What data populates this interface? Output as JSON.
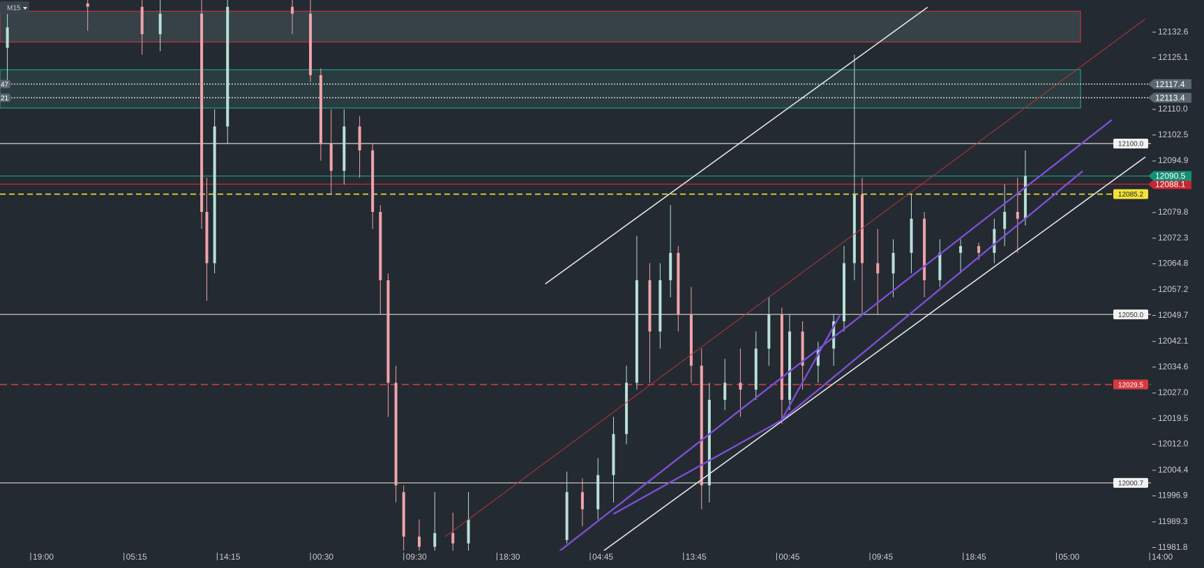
{
  "chart_data": {
    "type": "candlestick",
    "timeframe": "M15",
    "xlim": [
      -11.85,
      432.5
    ],
    "ylim": [
      11980.9,
      12142.0
    ],
    "xticks": [
      {
        "value": 0,
        "label": "19:00"
      },
      {
        "value": 36,
        "label": "05:15"
      },
      {
        "value": 72,
        "label": "14:15"
      },
      {
        "value": 108,
        "label": "00:30"
      },
      {
        "value": 144,
        "label": "09:30"
      },
      {
        "value": 180,
        "label": "18:30"
      },
      {
        "value": 216,
        "label": "04:45"
      },
      {
        "value": 252,
        "label": "13:45"
      },
      {
        "value": 288,
        "label": "00:45"
      },
      {
        "value": 324,
        "label": "09:45"
      },
      {
        "value": 360,
        "label": "18:45"
      },
      {
        "value": 396,
        "label": "05:00"
      },
      {
        "value": 432,
        "label": "14:00"
      }
    ],
    "yticks": [
      12132.6,
      12125.1,
      {
        "value": 12110,
        "label": "12110.0"
      },
      12102.5,
      12094.9,
      12079.8,
      12072.3,
      12064.8,
      12057.2,
      12049.7,
      12042.1,
      12034.6,
      {
        "value": 12027,
        "label": "12027.0"
      },
      12019.5,
      {
        "value": 12012,
        "label": "12012.0"
      },
      12004.4,
      11996.9,
      11989.3,
      11981.8
    ],
    "up_color": "#b7e0d6",
    "down_color": "#f0a3aa",
    "x": [
      -9,
      22,
      43,
      50,
      66,
      68,
      71,
      76,
      101,
      108,
      112,
      116,
      121,
      127,
      132,
      135,
      138,
      141,
      144,
      150,
      156,
      163,
      169,
      207,
      213,
      219,
      225,
      230,
      234,
      239,
      243,
      247,
      250,
      255,
      259,
      262,
      268,
      274,
      280,
      285,
      290,
      293,
      298,
      304,
      310,
      314,
      318,
      321,
      327,
      333,
      340,
      345,
      351,
      359,
      366,
      372,
      376,
      381,
      384
    ],
    "open": [
      12128,
      12141,
      12140,
      12132,
      12138,
      12080,
      12065,
      12105,
      12140,
      12138,
      12120,
      12100,
      12092,
      12105,
      12098,
      12080,
      12060,
      12030,
      11998,
      11985,
      11982,
      11986,
      11983,
      11984,
      11998,
      11993,
      12003,
      12015,
      12030,
      12060,
      12045,
      12060,
      12068,
      12050,
      12035,
      12000,
      12025,
      12030,
      12028,
      12040,
      12050,
      12025,
      12045,
      12035,
      12040,
      12048,
      12065,
      12085,
      12065,
      12062,
      12068,
      12078,
      12060,
      12068,
      12070,
      12068,
      12075,
      12080,
      12078
    ],
    "high": [
      12141,
      12145,
      12145,
      12142,
      12145,
      12090,
      12110,
      12145,
      12145,
      12142,
      12122,
      12110,
      12110,
      12108,
      12100,
      12082,
      12062,
      12035,
      12000,
      11990,
      11998,
      11992,
      11998,
      12004,
      12002,
      12008,
      12020,
      12035,
      12073,
      12065,
      12065,
      12082,
      12070,
      12058,
      12040,
      12030,
      12037,
      12040,
      12045,
      12055,
      12052,
      12050,
      12048,
      12042,
      12050,
      12070,
      12126,
      12090,
      12075,
      12072,
      12085,
      12080,
      12072,
      12072,
      12071,
      12078,
      12088,
      12090,
      12098
    ],
    "low": [
      12118,
      12133,
      12126,
      12127,
      12075,
      12054,
      12062,
      12100,
      12132,
      12118,
      12095,
      12085,
      12088,
      12090,
      12075,
      12050,
      12020,
      11995,
      11978,
      11978,
      11978,
      11978,
      11978,
      11983,
      11988,
      11990,
      11995,
      12012,
      12028,
      12030,
      12040,
      12055,
      12045,
      12030,
      11993,
      11995,
      12022,
      12020,
      12025,
      12035,
      12018,
      12022,
      12028,
      12030,
      12035,
      12045,
      12060,
      12050,
      12050,
      12055,
      12062,
      12055,
      12058,
      12062,
      12066,
      12065,
      12070,
      12068,
      12076
    ],
    "close": [
      12134,
      12140,
      12132,
      12138,
      12080,
      12065,
      12105,
      12140,
      12138,
      12120,
      12100,
      12092,
      12105,
      12098,
      12080,
      12060,
      12030,
      12000,
      11985,
      11982,
      11986,
      11983,
      11990,
      11998,
      11993,
      12003,
      12015,
      12030,
      12060,
      12045,
      12060,
      12068,
      12050,
      12035,
      12000,
      12025,
      12030,
      12028,
      12040,
      12050,
      12025,
      12045,
      12035,
      12040,
      12048,
      12065,
      12085,
      12065,
      12062,
      12068,
      12078,
      12060,
      12068,
      12070,
      12068,
      12075,
      12080,
      12078,
      12090.5
    ],
    "zones": [
      {
        "x": [
          -11.85,
          405.3
        ],
        "price": [
          12129.7,
          12138.7
        ],
        "fill": "#3a454c",
        "stroke": "#c0353c"
      },
      {
        "x": [
          -11.85,
          405.3
        ],
        "price": [
          12110.4,
          12121.6
        ],
        "fill": "#2c3f42",
        "stroke": "#1f9e84"
      }
    ],
    "lines": [
      {
        "color": "#e6e6e6",
        "width": 1.6,
        "points": [
          [
            198.8,
            12059.0
          ],
          [
            346.1,
            12139.8
          ]
        ]
      },
      {
        "color": "#e6e6e6",
        "width": 1.6,
        "points": [
          [
            221.3,
            11980.9
          ],
          [
            430.2,
            12096.0
          ]
        ]
      },
      {
        "color": "#b9343c",
        "width": 1,
        "points": [
          [
            160,
            11985
          ],
          [
            430.2,
            12136.4
          ]
        ]
      },
      {
        "color": "#7c4fd6",
        "width": 2.4,
        "points": [
          [
            204.4,
            11980.9
          ],
          [
            417.2,
            12106.8
          ]
        ]
      },
      {
        "color": "#7c4fd6",
        "width": 2.4,
        "points": [
          [
            289.8,
            12019.0
          ],
          [
            405.9,
            12091.8
          ]
        ]
      },
      {
        "color": "#7c4fd6",
        "width": 2.4,
        "points": [
          [
            225.2,
            11991.7
          ],
          [
            289.8,
            12019.0
          ]
        ]
      },
      {
        "color": "#7c4fd6",
        "width": 2.4,
        "points": [
          [
            289.8,
            12019.0
          ],
          [
            312.6,
            12050.0
          ]
        ]
      }
    ],
    "levels": [
      {
        "price": 12100.0,
        "label": "12100.0",
        "color": "#c8c8c8",
        "dash": "none",
        "tag": "plot",
        "tag_fill": "#f2f2f2",
        "tag_text": "#333333"
      },
      {
        "price": 12050.0,
        "label": "12050.0",
        "color": "#c8c8c8",
        "dash": "none",
        "tag": "plot",
        "tag_fill": "#f2f2f2",
        "tag_text": "#333333"
      },
      {
        "price": 12000.7,
        "label": "12000.7",
        "color": "#c8c8c8",
        "dash": "none",
        "tag": "plot",
        "tag_fill": "#f2f2f2",
        "tag_text": "#333333"
      },
      {
        "price": 12085.2,
        "label": "12085.2",
        "color": "#f3e23a",
        "dash": "8 5",
        "tag": "plot",
        "tag_fill": "#f3e23a",
        "tag_text": "#222222"
      },
      {
        "price": 12029.5,
        "label": "12029.5",
        "color": "#d63a3f",
        "dash": "10 6",
        "tag": "plot",
        "tag_fill": "#d63a3f",
        "tag_text": "#ffffff"
      },
      {
        "price": 12088.1,
        "label": "12088.1",
        "color": "#b82a33",
        "dash": "none",
        "tag": "axis",
        "tag_fill": "#c62630",
        "tag_text": "#ffffff"
      },
      {
        "price": 12090.5,
        "label": "12090.5",
        "color": "#1f8f7a",
        "dash": "none",
        "tag": "axis",
        "tag_fill": "#168e76",
        "tag_text": "#ffffff"
      },
      {
        "price": 12117.4,
        "label": "12117.4",
        "color": "#d0d0d0",
        "dash": "2 2",
        "tag": "axis",
        "tag_fill": "#5b6770",
        "tag_text": "#ffffff"
      },
      {
        "price": 12113.4,
        "label": "12113.4",
        "color": "#d0d0d0",
        "dash": "2 2",
        "tag": "axis",
        "tag_fill": "#5b6770",
        "tag_text": "#ffffff"
      }
    ],
    "left_tags": [
      {
        "price": 12117.4,
        "label": "47"
      },
      {
        "price": 12113.4,
        "label": "21"
      }
    ]
  }
}
